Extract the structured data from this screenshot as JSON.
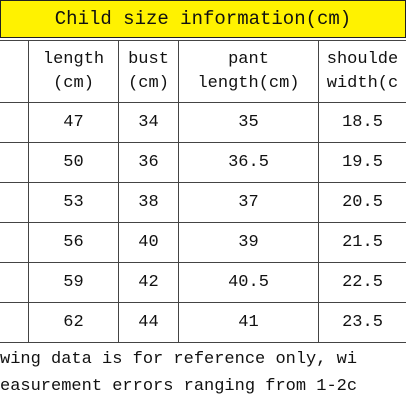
{
  "title": "Child size information(cm)",
  "table": {
    "header": [
      [
        "length",
        "(cm)"
      ],
      [
        "bust",
        "(cm)"
      ],
      [
        "pant",
        "length(cm)"
      ],
      [
        "shoulde",
        "width(c"
      ]
    ],
    "rows": [
      [
        "47",
        "34",
        "35",
        "18.5"
      ],
      [
        "50",
        "36",
        "36.5",
        "19.5"
      ],
      [
        "53",
        "38",
        "37",
        "20.5"
      ],
      [
        "56",
        "40",
        "39",
        "21.5"
      ],
      [
        "59",
        "42",
        "40.5",
        "22.5"
      ],
      [
        "62",
        "44",
        "41",
        "23.5"
      ]
    ]
  },
  "note": [
    "wing data is for reference only, wi",
    "easurement errors ranging from 1-2c"
  ]
}
